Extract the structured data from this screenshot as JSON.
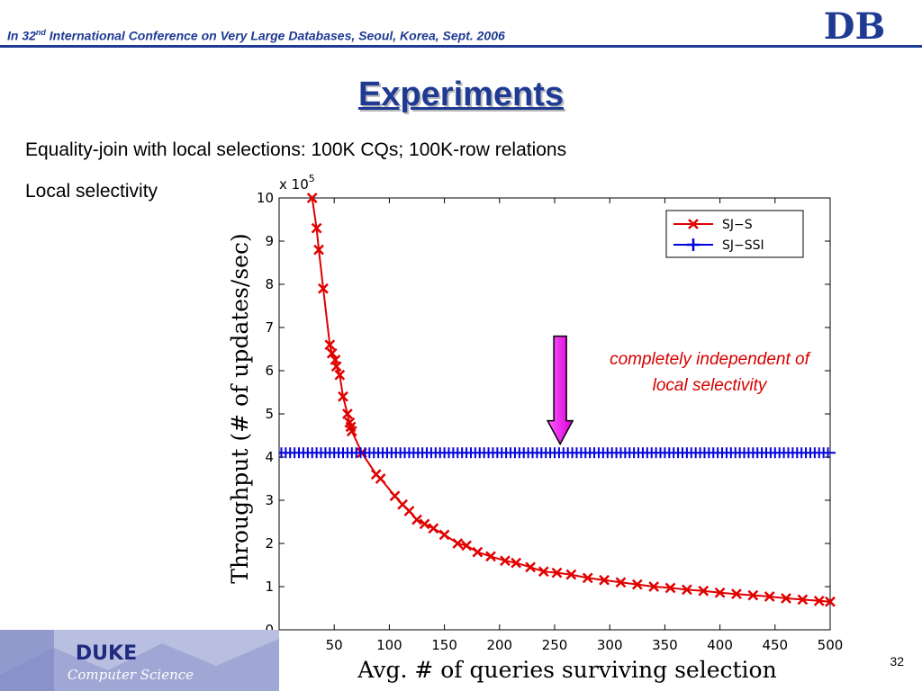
{
  "header": {
    "conference_prefix": "In 32",
    "conference_sup": "nd",
    "conference_rest": " International Conference on Very Large Databases, Seoul, Korea, Sept. 2006",
    "logo_text": "DB",
    "line_color": "#1f3a93"
  },
  "slide": {
    "title": "Experiments",
    "bullets": [
      "Equality-join with local selections: 100K CQs; 100K-row relations",
      "Local selectivity"
    ],
    "page_number": "32"
  },
  "footer": {
    "logo_main": "DUKE",
    "logo_sub": "Computer Science"
  },
  "chart_data": {
    "type": "line",
    "xlabel": "Avg. # of queries surviving selection",
    "ylabel": "Throughput (# of updates/sec)",
    "y_multiplier_base": "x 10",
    "y_multiplier_exp": "5",
    "xlim": [
      0,
      500
    ],
    "ylim": [
      0,
      10
    ],
    "xticks": [
      50,
      100,
      150,
      200,
      250,
      300,
      350,
      400,
      450,
      500
    ],
    "yticks": [
      0,
      1,
      2,
      3,
      4,
      5,
      6,
      7,
      8,
      9,
      10
    ],
    "legend_position": "top-right",
    "grid": false,
    "annotation": {
      "lines": [
        "completely independent of",
        "local selectivity"
      ],
      "arrow_x": 255,
      "arrow_from_y": 6.8,
      "arrow_to_y": 4.3
    },
    "series": [
      {
        "name": "SJ−S",
        "color": "#e00000",
        "marker": "x",
        "x": [
          30,
          34,
          36,
          40,
          46,
          48,
          51,
          52,
          55,
          58,
          62,
          64,
          65,
          66,
          75,
          88,
          92,
          105,
          112,
          118,
          125,
          132,
          140,
          150,
          162,
          170,
          180,
          192,
          205,
          215,
          228,
          240,
          252,
          265,
          280,
          295,
          310,
          325,
          340,
          355,
          370,
          385,
          400,
          415,
          430,
          445,
          460,
          475,
          490,
          500
        ],
        "y": [
          10,
          9.3,
          8.8,
          7.9,
          6.6,
          6.4,
          6.25,
          6.1,
          5.9,
          5.4,
          5.0,
          4.8,
          4.7,
          4.6,
          4.1,
          3.6,
          3.5,
          3.1,
          2.9,
          2.75,
          2.55,
          2.45,
          2.35,
          2.2,
          2.0,
          1.95,
          1.8,
          1.7,
          1.6,
          1.55,
          1.45,
          1.35,
          1.32,
          1.28,
          1.2,
          1.15,
          1.1,
          1.05,
          1.0,
          0.97,
          0.93,
          0.9,
          0.86,
          0.83,
          0.8,
          0.77,
          0.73,
          0.7,
          0.67,
          0.65
        ]
      },
      {
        "name": "SJ−SSI",
        "color": "#0000e0",
        "marker": "+",
        "value": 4.1,
        "x_from": 0,
        "x_to": 500
      }
    ]
  }
}
